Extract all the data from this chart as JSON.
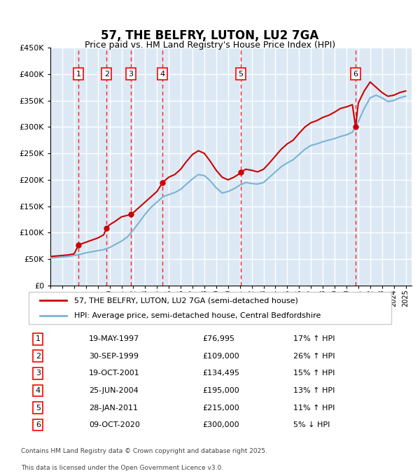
{
  "title": "57, THE BELFRY, LUTON, LU2 7GA",
  "subtitle": "Price paid vs. HM Land Registry's House Price Index (HPI)",
  "legend_line1": "57, THE BELFRY, LUTON, LU2 7GA (semi-detached house)",
  "legend_line2": "HPI: Average price, semi-detached house, Central Bedfordshire",
  "footer_line1": "Contains HM Land Registry data © Crown copyright and database right 2025.",
  "footer_line2": "This data is licensed under the Open Government Licence v3.0.",
  "background_color": "#dce9f5",
  "plot_bg_color": "#dce9f5",
  "grid_color": "#ffffff",
  "ylim": [
    0,
    450000
  ],
  "yticks": [
    0,
    50000,
    100000,
    150000,
    200000,
    250000,
    300000,
    350000,
    400000,
    450000
  ],
  "xlim_start": 1995.0,
  "xlim_end": 2025.5,
  "red_line_color": "#cc0000",
  "blue_line_color": "#7ab3d4",
  "sale_points": [
    {
      "num": 1,
      "year": 1997.38,
      "price": 76995,
      "date": "19-MAY-1997",
      "pct": "17%",
      "dir": "↑"
    },
    {
      "num": 2,
      "year": 1999.75,
      "price": 109000,
      "date": "30-SEP-1999",
      "pct": "26%",
      "dir": "↑"
    },
    {
      "num": 3,
      "year": 2001.8,
      "price": 134495,
      "date": "19-OCT-2001",
      "pct": "15%",
      "dir": "↑"
    },
    {
      "num": 4,
      "year": 2004.48,
      "price": 195000,
      "date": "25-JUN-2004",
      "pct": "13%",
      "dir": "↑"
    },
    {
      "num": 5,
      "year": 2011.08,
      "price": 215000,
      "date": "28-JAN-2011",
      "pct": "11%",
      "dir": "↑"
    },
    {
      "num": 6,
      "year": 2020.77,
      "price": 300000,
      "date": "09-OCT-2020",
      "pct": "5%",
      "dir": "↓"
    }
  ],
  "table_rows": [
    {
      "num": 1,
      "date": "19-MAY-1997",
      "price": "£76,995",
      "pct_hpi": "17% ↑ HPI"
    },
    {
      "num": 2,
      "date": "30-SEP-1999",
      "price": "£109,000",
      "pct_hpi": "26% ↑ HPI"
    },
    {
      "num": 3,
      "date": "19-OCT-2001",
      "price": "£134,495",
      "pct_hpi": "15% ↑ HPI"
    },
    {
      "num": 4,
      "date": "25-JUN-2004",
      "price": "£195,000",
      "pct_hpi": "13% ↑ HPI"
    },
    {
      "num": 5,
      "date": "28-JAN-2011",
      "price": "£215,000",
      "pct_hpi": "11% ↑ HPI"
    },
    {
      "num": 6,
      "date": "09-OCT-2020",
      "price": "£300,000",
      "pct_hpi": "5% ↓ HPI"
    }
  ],
  "hpi_data": {
    "years": [
      1995.0,
      1995.5,
      1996.0,
      1996.5,
      1997.0,
      1997.5,
      1998.0,
      1998.5,
      1999.0,
      1999.5,
      2000.0,
      2000.5,
      2001.0,
      2001.5,
      2002.0,
      2002.5,
      2003.0,
      2003.5,
      2004.0,
      2004.5,
      2005.0,
      2005.5,
      2006.0,
      2006.5,
      2007.0,
      2007.5,
      2008.0,
      2008.5,
      2009.0,
      2009.5,
      2010.0,
      2010.5,
      2011.0,
      2011.5,
      2012.0,
      2012.5,
      2013.0,
      2013.5,
      2014.0,
      2014.5,
      2015.0,
      2015.5,
      2016.0,
      2016.5,
      2017.0,
      2017.5,
      2018.0,
      2018.5,
      2019.0,
      2019.5,
      2020.0,
      2020.5,
      2021.0,
      2021.5,
      2022.0,
      2022.5,
      2023.0,
      2023.5,
      2024.0,
      2024.5,
      2025.0
    ],
    "values": [
      52000,
      53000,
      54000,
      55000,
      57000,
      59000,
      62000,
      64000,
      66000,
      68000,
      72000,
      78000,
      84000,
      92000,
      105000,
      120000,
      135000,
      148000,
      158000,
      168000,
      172000,
      176000,
      182000,
      192000,
      202000,
      210000,
      208000,
      198000,
      185000,
      175000,
      178000,
      183000,
      190000,
      195000,
      193000,
      192000,
      195000,
      205000,
      215000,
      225000,
      232000,
      238000,
      248000,
      258000,
      265000,
      268000,
      272000,
      275000,
      278000,
      282000,
      285000,
      290000,
      310000,
      335000,
      355000,
      360000,
      355000,
      348000,
      350000,
      355000,
      358000
    ]
  },
  "price_line_data": {
    "years": [
      1995.0,
      1995.5,
      1996.0,
      1996.5,
      1997.0,
      1997.38,
      1997.5,
      1998.0,
      1998.5,
      1999.0,
      1999.5,
      1999.75,
      2000.0,
      2000.5,
      2001.0,
      2001.8,
      2002.0,
      2002.5,
      2003.0,
      2003.5,
      2004.0,
      2004.48,
      2005.0,
      2005.5,
      2006.0,
      2006.5,
      2007.0,
      2007.5,
      2008.0,
      2008.5,
      2009.0,
      2009.5,
      2010.0,
      2010.5,
      2011.0,
      2011.08,
      2011.5,
      2012.0,
      2012.5,
      2013.0,
      2013.5,
      2014.0,
      2014.5,
      2015.0,
      2015.5,
      2016.0,
      2016.5,
      2017.0,
      2017.5,
      2018.0,
      2018.5,
      2019.0,
      2019.5,
      2020.0,
      2020.5,
      2020.77,
      2021.0,
      2021.5,
      2022.0,
      2022.5,
      2023.0,
      2023.5,
      2024.0,
      2024.5,
      2025.0
    ],
    "values": [
      55000,
      56000,
      57000,
      58000,
      60000,
      76995,
      78000,
      82000,
      86000,
      90000,
      96000,
      109000,
      115000,
      122000,
      130000,
      134495,
      138000,
      148000,
      158000,
      168000,
      178000,
      195000,
      205000,
      210000,
      220000,
      235000,
      248000,
      255000,
      250000,
      235000,
      218000,
      205000,
      200000,
      205000,
      212000,
      215000,
      220000,
      218000,
      215000,
      220000,
      232000,
      245000,
      258000,
      268000,
      275000,
      288000,
      300000,
      308000,
      312000,
      318000,
      322000,
      328000,
      335000,
      338000,
      342000,
      300000,
      345000,
      368000,
      385000,
      375000,
      365000,
      358000,
      360000,
      365000,
      368000
    ]
  }
}
